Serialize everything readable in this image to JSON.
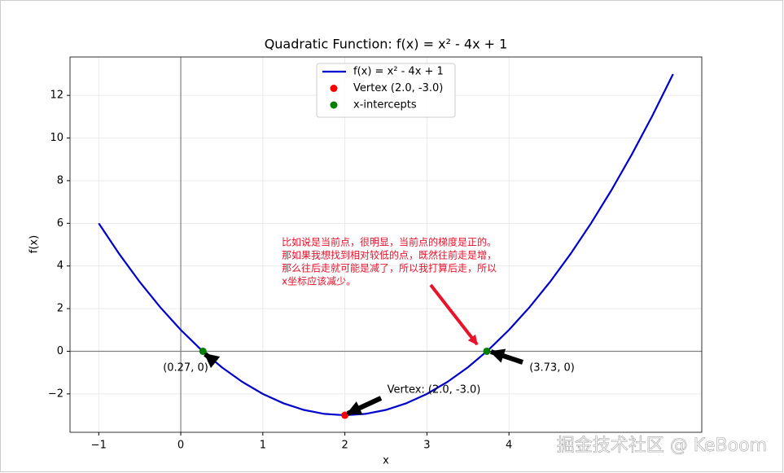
{
  "chart_data": {
    "type": "line",
    "title": "Quadratic Function: f(x) = x² - 4x + 1",
    "x_label": "x",
    "y_label": "f(x)",
    "xlim": [
      -1.35,
      6.35
    ],
    "ylim": [
      -3.8,
      13.8
    ],
    "xticks": [
      {
        "value": -1,
        "label": "−1"
      },
      0,
      1,
      2,
      3,
      4
    ],
    "yticks": [
      {
        "value": -2,
        "label": "−2"
      },
      0,
      2,
      4,
      6,
      8,
      10,
      12
    ],
    "grid": true,
    "legend": "upper center",
    "series": [
      {
        "name": "f(x) = x² - 4x + 1",
        "color": "#0000cd",
        "style": "line",
        "x": [
          -1,
          -0.75,
          -0.5,
          -0.25,
          0,
          0.25,
          0.5,
          0.75,
          1,
          1.25,
          1.5,
          1.75,
          2,
          2.25,
          2.5,
          2.75,
          3,
          3.25,
          3.5,
          3.75,
          4,
          4.25,
          4.5,
          4.75,
          5,
          5.25,
          5.5,
          5.75,
          6
        ],
        "values": [
          6,
          4.5625,
          3.25,
          2.0625,
          1,
          0.0625,
          -0.75,
          -1.4375,
          -2,
          -2.4375,
          -2.75,
          -2.9375,
          -3,
          -2.9375,
          -2.75,
          -2.4375,
          -2,
          -1.4375,
          -0.75,
          0.0625,
          1,
          2.0625,
          3.25,
          4.5625,
          6,
          7.5625,
          9.25,
          11.0625,
          13
        ]
      },
      {
        "name": "Vertex (2.0, -3.0)",
        "color": "#ff0000",
        "style": "scatter",
        "x": [
          2
        ],
        "values": [
          -3
        ]
      },
      {
        "name": "x-intercepts",
        "color": "#008000",
        "style": "scatter",
        "x": [
          0.27,
          3.73
        ],
        "values": [
          0,
          0
        ]
      }
    ],
    "annotations": [
      {
        "text": "(0.27, 0)"
      },
      {
        "text": "(3.73, 0)"
      },
      {
        "text": "Vertex: (2.0, -3.0)"
      },
      {
        "lines": [
          "比如说是当前点，很明显，当前点的梯度是正的。",
          "那如果我想找到相对较低的点，既然往前走是增，",
          "那么往后走就可能是减了，所以我打算后走，所以",
          "x坐标应该减少。"
        ]
      }
    ],
    "watermark": "掘金技术社区 @ KeBoom"
  }
}
